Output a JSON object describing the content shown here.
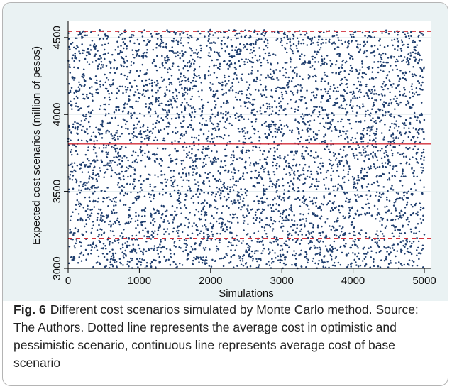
{
  "chart_data": {
    "type": "scatter",
    "xlabel": "Simulations",
    "ylabel": "Expected cost scenarios (million of pesos)",
    "xlim": [
      0,
      5000
    ],
    "ylim": [
      3000,
      4550
    ],
    "x_ticks": [
      0,
      1000,
      2000,
      3000,
      4000,
      5000
    ],
    "y_ticks": [
      3000,
      3500,
      4000,
      4500
    ],
    "grid": "horizontal",
    "series": [
      {
        "type": "scatter",
        "n_points": 5000,
        "x_range": [
          1,
          5000
        ],
        "y_range": [
          3000,
          4550
        ],
        "distribution": "uniform",
        "color": "#1f3e6e"
      }
    ],
    "reference_lines": [
      {
        "y": 4540,
        "style": "dashed",
        "color": "#d32f3a"
      },
      {
        "y": 3808,
        "style": "solid",
        "color": "#d32f3a"
      },
      {
        "y": 3195,
        "style": "dashed",
        "color": "#d32f3a"
      }
    ]
  },
  "caption": {
    "label": "Fig. 6",
    "text": "Different cost scenarios simulated by Monte Carlo method. Source: The Authors. Dotted line represents the average cost in optimistic and pessimistic scenario, continuous line represents average cost of base scenario"
  }
}
